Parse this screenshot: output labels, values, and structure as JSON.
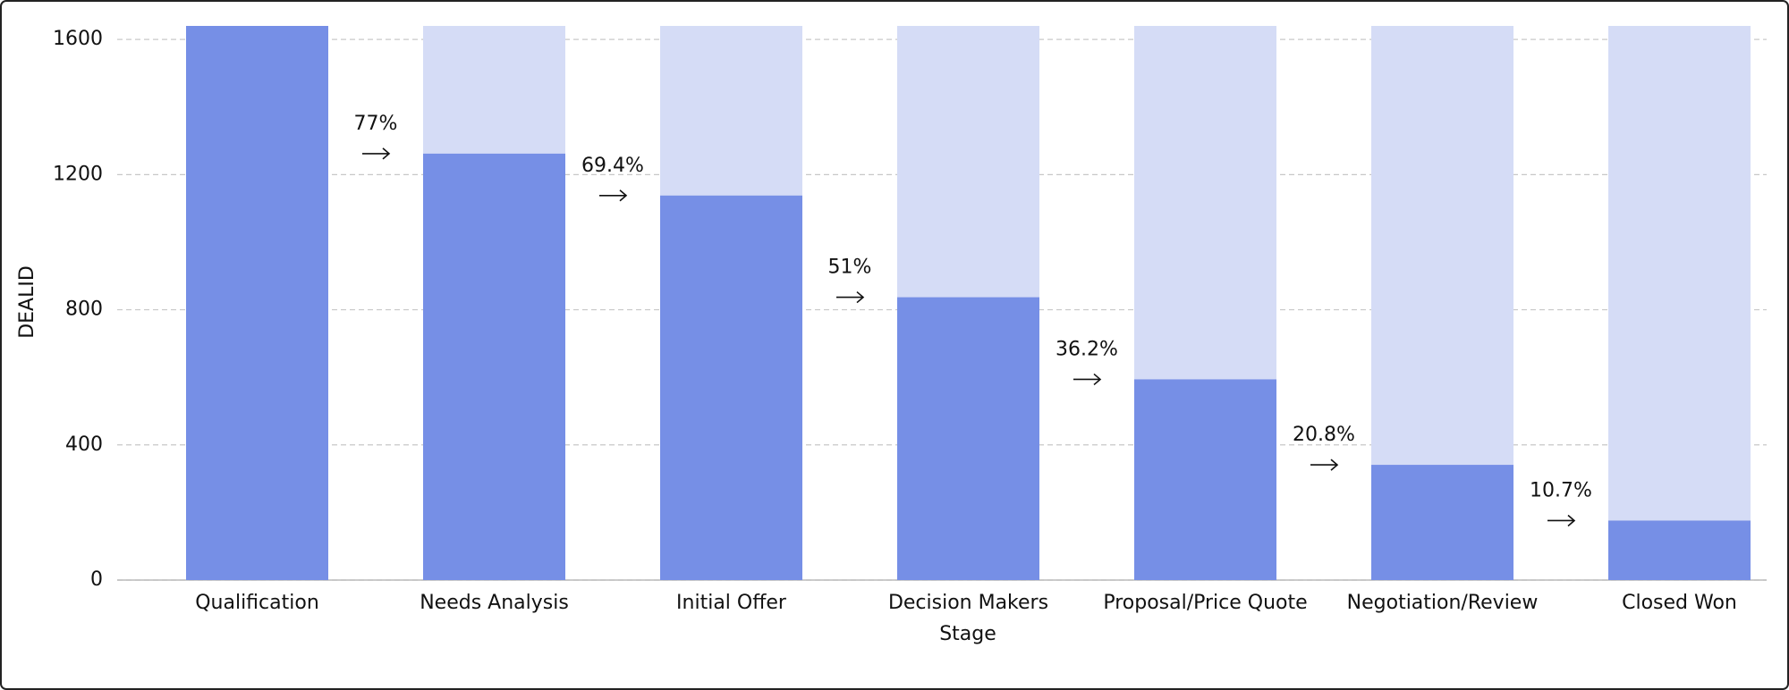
{
  "chart_data": {
    "type": "funnel-bar",
    "x_label": "Stage",
    "y_label": "DEALID",
    "categories": [
      "Qualification",
      "Needs Analysis",
      "Initial Offer",
      "Decision Makers",
      "Proposal/Price Quote",
      "Negotiation/Review",
      "Closed Won"
    ],
    "values": [
      1640,
      1262,
      1138,
      837,
      594,
      341,
      176
    ],
    "color": "#768fe6",
    "background_color": "#d5dcf6",
    "conversion": {
      "values": [
        77,
        69.4,
        51,
        36.2,
        20.8,
        10.7
      ],
      "value_labels": [
        "77%",
        "69.4%",
        "51%",
        "36.2%",
        "20.8%",
        "10.7%"
      ]
    },
    "ylim": [
      0,
      1640
    ],
    "yticks": [
      0,
      400,
      800,
      1200,
      1600
    ],
    "grid": true
  }
}
